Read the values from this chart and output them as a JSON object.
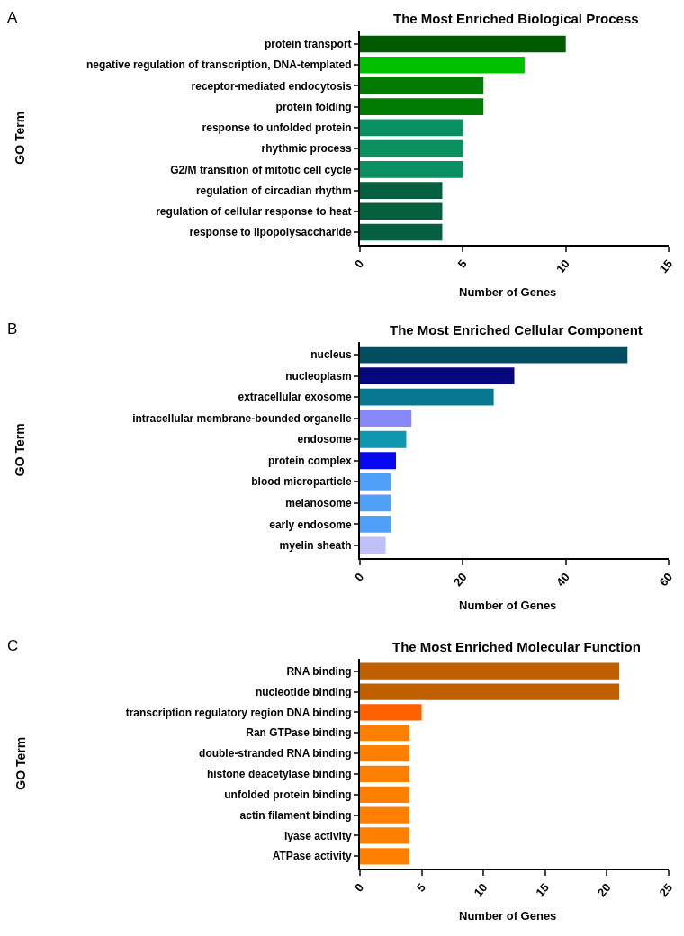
{
  "chart_data": [
    {
      "type": "bar",
      "orientation": "horizontal",
      "title": "The Most Enriched Biological Process",
      "xlabel": "Number of Genes",
      "ylabel": "GO Term",
      "annotations": [
        "A"
      ],
      "categories": [
        "protein transport",
        "negative regulation of transcription, DNA-templated",
        "receptor-mediated endocytosis",
        "protein folding",
        "response to unfolded protein",
        "rhythmic process",
        "G2/M transition of mitotic cell cycle",
        "regulation of circadian rhythm",
        "regulation of cellular response to heat",
        "response to lipopolysaccharide"
      ],
      "values": [
        10,
        8,
        6,
        6,
        5,
        5,
        5,
        4,
        4,
        4
      ],
      "colors": [
        "#005a00",
        "#00c000",
        "#007a00",
        "#007a00",
        "#0a9060",
        "#0a9060",
        "#0a9060",
        "#066040",
        "#066040",
        "#066040"
      ],
      "xlim": [
        0,
        15
      ],
      "xticks": [
        0,
        5,
        10,
        15
      ]
    },
    {
      "type": "bar",
      "orientation": "horizontal",
      "title": "The Most Enriched Cellular Component",
      "xlabel": "Number of Genes",
      "ylabel": "GO Term",
      "annotations": [
        "B"
      ],
      "categories": [
        "nucleus",
        "nucleoplasm",
        "extracellular exosome",
        "intracellular membrane-bounded organelle",
        "endosome",
        "protein complex",
        "blood microparticle",
        "melanosome",
        "early endosome",
        "myelin sheath"
      ],
      "values": [
        52,
        30,
        26,
        10,
        9,
        7,
        6,
        6,
        6,
        5
      ],
      "colors": [
        "#044c60",
        "#06067e",
        "#087890",
        "#8888f8",
        "#1098b0",
        "#0808f0",
        "#50a0f8",
        "#50a0f8",
        "#50a0f8",
        "#c0c0f8"
      ],
      "xlim": [
        0,
        60
      ],
      "xticks": [
        0,
        20,
        40,
        60
      ]
    },
    {
      "type": "bar",
      "orientation": "horizontal",
      "title": "The Most Enriched Molecular Function",
      "xlabel": "Number of Genes",
      "ylabel": "GO Term",
      "annotations": [
        "C"
      ],
      "categories": [
        "RNA binding",
        "nucleotide binding",
        "transcription regulatory region DNA binding",
        "Ran GTPase binding",
        "double-stranded RNA binding",
        "histone deacetylase binding",
        "unfolded protein binding",
        "actin filament binding",
        "lyase activity",
        "ATPase activity"
      ],
      "values": [
        21,
        21,
        5,
        4,
        4,
        4,
        4,
        4,
        4,
        4
      ],
      "colors": [
        "#c06000",
        "#c06000",
        "#ff6000",
        "#ff8000",
        "#ff8000",
        "#ff8000",
        "#ff8000",
        "#ff8000",
        "#ff8000",
        "#ff8000"
      ],
      "xlim": [
        0,
        25
      ],
      "xticks": [
        0,
        5,
        10,
        15,
        20,
        25
      ]
    }
  ]
}
